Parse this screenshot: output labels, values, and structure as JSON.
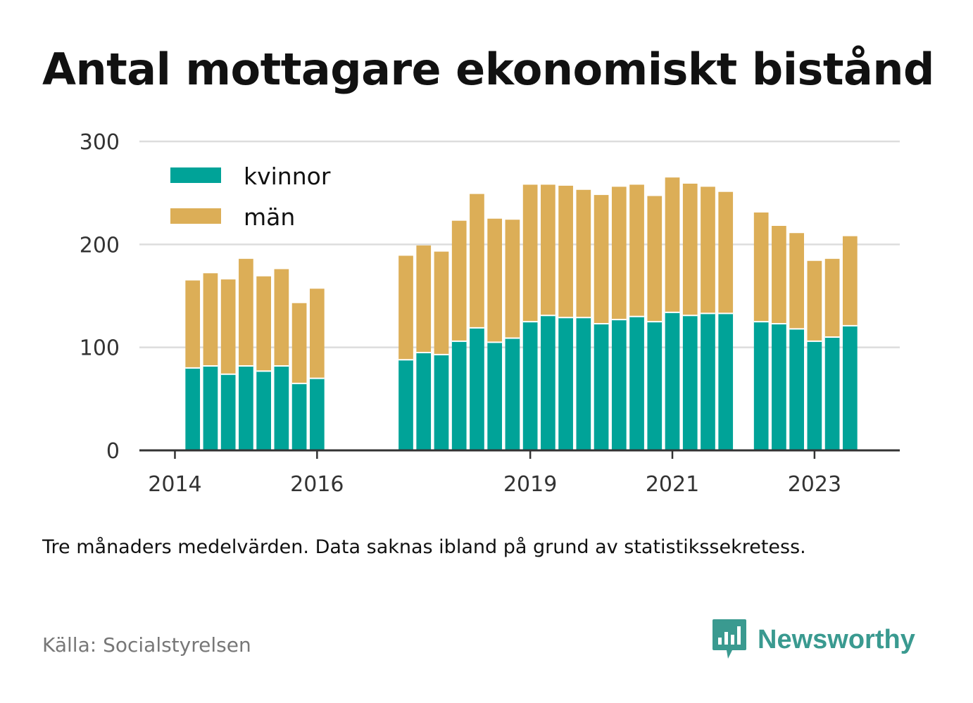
{
  "title": "Antal mottagare ekonomiskt bistånd",
  "note": "Tre månaders medelvärden. Data saknas ibland på grund av statistikssekretess.",
  "source": "Källa: Socialstyrelsen",
  "brand": {
    "name": "Newsworthy",
    "icon": "newsworthy-logo-icon",
    "color": "#3a9a90"
  },
  "chart_data": {
    "type": "bar",
    "stacked": true,
    "grid": true,
    "legend_position": "top-left",
    "ylim": [
      0,
      300
    ],
    "yticks": [
      0,
      100,
      200,
      300
    ],
    "xticks": [
      {
        "label": "2014",
        "x": 2014.0
      },
      {
        "label": "2016",
        "x": 2016.0
      },
      {
        "label": "2019",
        "x": 2019.0
      },
      {
        "label": "2021",
        "x": 2021.0
      },
      {
        "label": "2023",
        "x": 2023.0
      }
    ],
    "xlim": [
      2013.5,
      2024.2
    ],
    "x": [
      2014.25,
      2014.5,
      2014.75,
      2015.0,
      2015.25,
      2015.5,
      2015.75,
      2016.0,
      2017.25,
      2017.5,
      2017.75,
      2018.0,
      2018.25,
      2018.5,
      2018.75,
      2019.0,
      2019.25,
      2019.5,
      2019.75,
      2020.0,
      2020.25,
      2020.5,
      2020.75,
      2021.0,
      2021.25,
      2021.5,
      2021.75,
      2022.25,
      2022.5,
      2022.75,
      2023.0,
      2023.25,
      2023.5
    ],
    "series": [
      {
        "name": "kvinnor",
        "color": "#00a398",
        "values": [
          80,
          82,
          74,
          82,
          77,
          82,
          65,
          70,
          88,
          95,
          93,
          106,
          119,
          105,
          109,
          125,
          131,
          129,
          129,
          123,
          127,
          130,
          125,
          134,
          131,
          133,
          133,
          125,
          123,
          118,
          106,
          110,
          121
        ]
      },
      {
        "name": "män",
        "color": "#dcae57",
        "values": [
          85,
          90,
          92,
          104,
          92,
          94,
          78,
          87,
          101,
          104,
          100,
          117,
          130,
          120,
          115,
          133,
          127,
          128,
          124,
          125,
          129,
          128,
          122,
          131,
          128,
          123,
          118,
          106,
          95,
          93,
          78,
          76,
          87
        ]
      }
    ]
  }
}
